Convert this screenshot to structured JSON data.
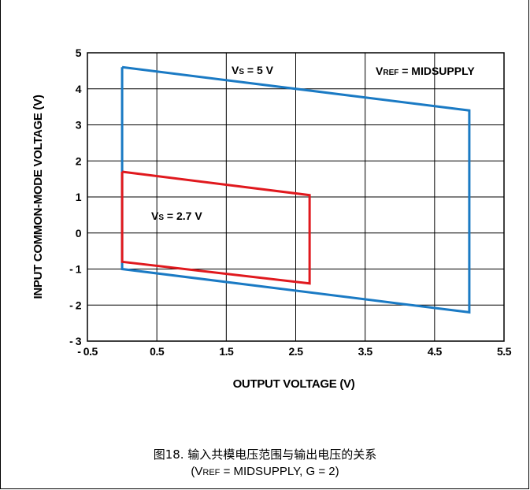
{
  "chart_data": {
    "type": "line",
    "xlabel": "OUTPUT VOLTAGE (V)",
    "ylabel": "INPUT COMMON-MODE VOLTAGE (V)",
    "xlim": [
      -0.5,
      5.5
    ],
    "ylim": [
      -3,
      5
    ],
    "x_ticks": [
      "- 0.5",
      "0.5",
      "1.5",
      "2.5",
      "3.5",
      "4.5",
      "5.5"
    ],
    "x_tick_values": [
      -0.5,
      0.5,
      1.5,
      2.5,
      3.5,
      4.5,
      5.5
    ],
    "y_ticks": [
      "5",
      "4",
      "3",
      "2",
      "1",
      "0",
      "- 1",
      "- 2",
      "- 3"
    ],
    "y_tick_values": [
      5,
      4,
      3,
      2,
      1,
      0,
      -1,
      -2,
      -3
    ],
    "grid": true,
    "series": [
      {
        "label_main": "V",
        "label_sub": "S",
        "label_rest": " = 5 V",
        "color": "#1a7ac4",
        "points": [
          [
            0.0,
            4.6
          ],
          [
            5.0,
            3.4
          ],
          [
            5.0,
            -2.2
          ],
          [
            0.0,
            -1.0
          ],
          [
            0.0,
            4.6
          ]
        ]
      },
      {
        "label_main": "V",
        "label_sub": "S",
        "label_rest": " = 2.7 V",
        "color": "#e0191e",
        "points": [
          [
            0.0,
            1.7
          ],
          [
            2.7,
            1.05
          ],
          [
            2.7,
            -1.4
          ],
          [
            0.0,
            -0.8
          ],
          [
            0.0,
            1.7
          ]
        ]
      }
    ],
    "annotation": {
      "main": "V",
      "sub": "REF",
      "rest": " = MIDSUPPLY"
    }
  },
  "caption": {
    "line1": "图18. 输入共模电压范围与输出电压的关系",
    "line2_pre": "(V",
    "line2_sub": "REF",
    "line2_post": " = MIDSUPPLY, G = 2)"
  }
}
